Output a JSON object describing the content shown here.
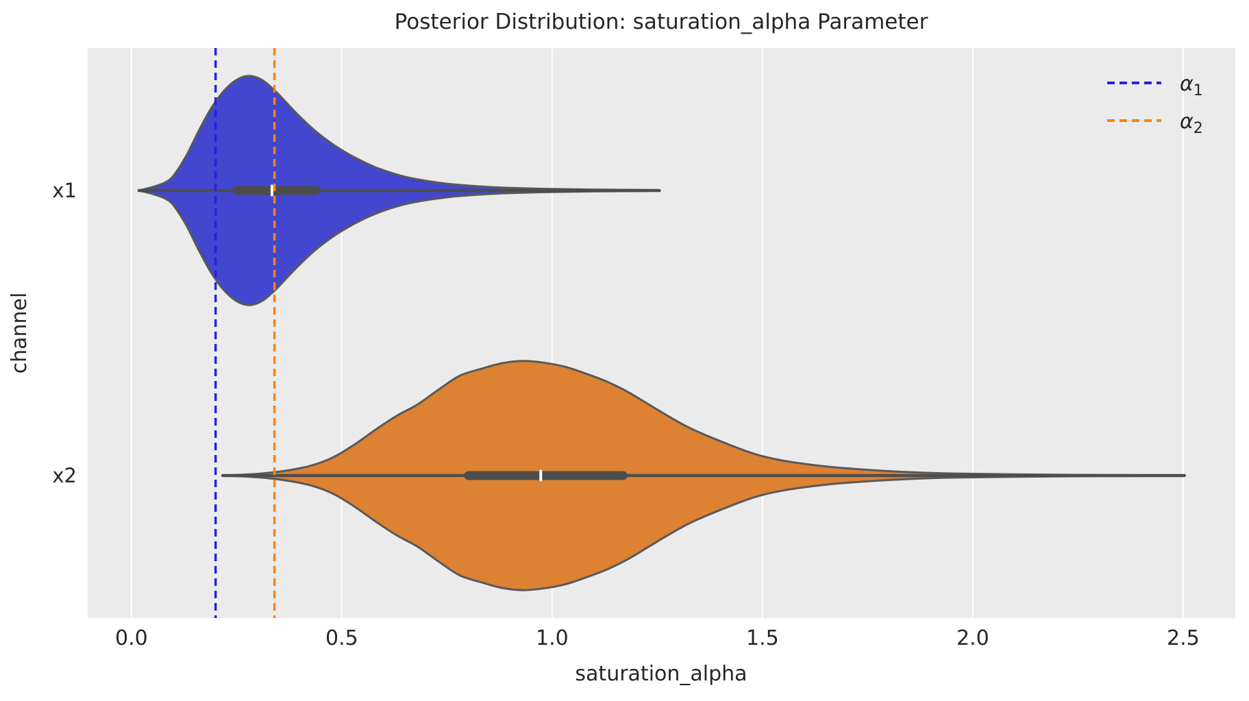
{
  "chart_data": {
    "type": "violin",
    "title": "Posterior Distribution: saturation_alpha Parameter",
    "xlabel": "saturation_alpha",
    "ylabel": "channel",
    "x_ticks": [
      "0.0",
      "0.5",
      "1.0",
      "1.5",
      "2.0",
      "2.5"
    ],
    "x_tick_values": [
      0.0,
      0.5,
      1.0,
      1.5,
      2.0,
      2.5
    ],
    "x_range": [
      -0.104,
      2.624
    ],
    "categories": [
      "x1",
      "x2"
    ],
    "grid": "vertical-white-major",
    "legend_position": "upper-right",
    "series": [
      {
        "name": "x1",
        "fill_color": "#4346CE",
        "whisker_min": 0.018,
        "whisker_max": 1.255,
        "q1": 0.241,
        "median": 0.334,
        "q3": 0.448,
        "density": [
          [
            0.018,
            0.0
          ],
          [
            0.05,
            0.03
          ],
          [
            0.08,
            0.07
          ],
          [
            0.1,
            0.13
          ],
          [
            0.13,
            0.3
          ],
          [
            0.16,
            0.52
          ],
          [
            0.19,
            0.72
          ],
          [
            0.22,
            0.87
          ],
          [
            0.25,
            0.965
          ],
          [
            0.28,
            1.0
          ],
          [
            0.31,
            0.965
          ],
          [
            0.34,
            0.875
          ],
          [
            0.37,
            0.76
          ],
          [
            0.4,
            0.645
          ],
          [
            0.44,
            0.51
          ],
          [
            0.48,
            0.4
          ],
          [
            0.52,
            0.31
          ],
          [
            0.56,
            0.235
          ],
          [
            0.6,
            0.175
          ],
          [
            0.65,
            0.12
          ],
          [
            0.7,
            0.085
          ],
          [
            0.76,
            0.055
          ],
          [
            0.83,
            0.035
          ],
          [
            0.9,
            0.022
          ],
          [
            1.0,
            0.013
          ],
          [
            1.1,
            0.008
          ],
          [
            1.2,
            0.005
          ],
          [
            1.255,
            0.002
          ]
        ]
      },
      {
        "name": "x2",
        "fill_color": "#DD8133",
        "whisker_min": 0.217,
        "whisker_max": 2.503,
        "q1": 0.791,
        "median": 0.973,
        "q3": 1.179,
        "density": [
          [
            0.217,
            0.0
          ],
          [
            0.28,
            0.01
          ],
          [
            0.33,
            0.025
          ],
          [
            0.38,
            0.05
          ],
          [
            0.43,
            0.09
          ],
          [
            0.48,
            0.16
          ],
          [
            0.53,
            0.27
          ],
          [
            0.58,
            0.4
          ],
          [
            0.63,
            0.52
          ],
          [
            0.68,
            0.62
          ],
          [
            0.73,
            0.75
          ],
          [
            0.78,
            0.87
          ],
          [
            0.83,
            0.93
          ],
          [
            0.88,
            0.98
          ],
          [
            0.93,
            1.0
          ],
          [
            0.98,
            0.985
          ],
          [
            1.03,
            0.95
          ],
          [
            1.08,
            0.89
          ],
          [
            1.13,
            0.82
          ],
          [
            1.18,
            0.73
          ],
          [
            1.23,
            0.62
          ],
          [
            1.28,
            0.51
          ],
          [
            1.33,
            0.41
          ],
          [
            1.4,
            0.3
          ],
          [
            1.48,
            0.19
          ],
          [
            1.55,
            0.13
          ],
          [
            1.65,
            0.08
          ],
          [
            1.75,
            0.05
          ],
          [
            1.85,
            0.03
          ],
          [
            1.95,
            0.018
          ],
          [
            2.1,
            0.01
          ],
          [
            2.3,
            0.005
          ],
          [
            2.503,
            0.002
          ]
        ]
      }
    ],
    "ref_lines": [
      {
        "label_base": "α",
        "label_sub": "1",
        "value": 0.2,
        "color": "#2424E0"
      },
      {
        "label_base": "α",
        "label_sub": "2",
        "value": 0.34,
        "color": "#FF830E"
      }
    ]
  },
  "colors": {
    "plot_background": "#EBEBEB",
    "gridline": "#FFFFFF",
    "violin_edge": "#595959",
    "inner_box": "#4D4D4D",
    "median_tick": "#FFFFFF",
    "text": "#262626"
  }
}
